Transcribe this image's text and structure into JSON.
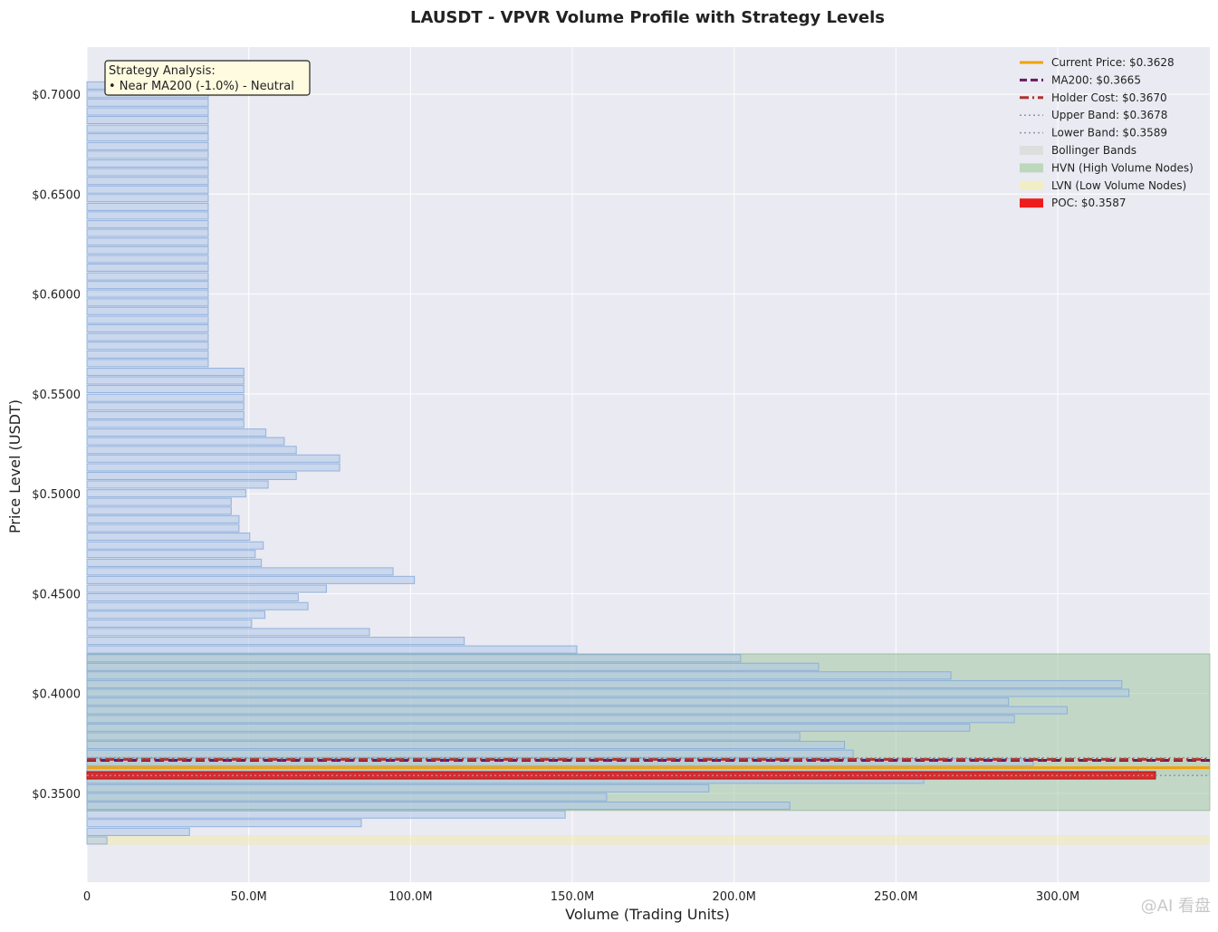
{
  "chart_data": {
    "type": "bar",
    "orientation": "horizontal",
    "title": "LAUSDT - VPVR Volume Profile with Strategy Levels",
    "xlabel": "Volume (Trading Units)",
    "ylabel": "Price Level (USDT)",
    "xlim": [
      0,
      347
    ],
    "ylim": [
      0.3055,
      0.7236
    ],
    "x_unit": "M",
    "grid": true,
    "legend_position": "top-right",
    "x_ticks": [
      {
        "value": 0,
        "label": "0"
      },
      {
        "value": 50,
        "label": "50.0M"
      },
      {
        "value": 100,
        "label": "100.0M"
      },
      {
        "value": 150,
        "label": "150.0M"
      },
      {
        "value": 200,
        "label": "200.0M"
      },
      {
        "value": 250,
        "label": "250.0M"
      },
      {
        "value": 300,
        "label": "300.0M"
      }
    ],
    "y_ticks": [
      {
        "value": 0.7,
        "label": "$0.7000"
      },
      {
        "value": 0.65,
        "label": "$0.6500"
      },
      {
        "value": 0.6,
        "label": "$0.6000"
      },
      {
        "value": 0.55,
        "label": "$0.5500"
      },
      {
        "value": 0.5,
        "label": "$0.5000"
      },
      {
        "value": 0.45,
        "label": "$0.4500"
      },
      {
        "value": 0.4,
        "label": "$0.4000"
      },
      {
        "value": 0.35,
        "label": "$0.3500"
      }
    ],
    "bin_height": 0.0042,
    "series": [
      {
        "name": "Volume",
        "color": "#aec7e8",
        "bins": [
          {
            "price": 0.7044,
            "volume": 37.5
          },
          {
            "price": 0.7001,
            "volume": 37.5
          },
          {
            "price": 0.6958,
            "volume": 37.5
          },
          {
            "price": 0.6914,
            "volume": 37.5
          },
          {
            "price": 0.6871,
            "volume": 37.5
          },
          {
            "price": 0.6827,
            "volume": 37.5
          },
          {
            "price": 0.6784,
            "volume": 37.5
          },
          {
            "price": 0.674,
            "volume": 37.5
          },
          {
            "price": 0.6697,
            "volume": 37.5
          },
          {
            "price": 0.6653,
            "volume": 37.5
          },
          {
            "price": 0.661,
            "volume": 37.5
          },
          {
            "price": 0.6566,
            "volume": 37.5
          },
          {
            "price": 0.6523,
            "volume": 37.5
          },
          {
            "price": 0.648,
            "volume": 37.5
          },
          {
            "price": 0.6436,
            "volume": 37.5
          },
          {
            "price": 0.6393,
            "volume": 37.5
          },
          {
            "price": 0.6349,
            "volume": 37.5
          },
          {
            "price": 0.6306,
            "volume": 37.5
          },
          {
            "price": 0.6262,
            "volume": 37.5
          },
          {
            "price": 0.6219,
            "volume": 37.5
          },
          {
            "price": 0.6175,
            "volume": 37.5
          },
          {
            "price": 0.6132,
            "volume": 37.5
          },
          {
            "price": 0.6088,
            "volume": 37.5
          },
          {
            "price": 0.6045,
            "volume": 37.5
          },
          {
            "price": 0.6002,
            "volume": 37.5
          },
          {
            "price": 0.5958,
            "volume": 37.5
          },
          {
            "price": 0.5915,
            "volume": 37.5
          },
          {
            "price": 0.5871,
            "volume": 37.5
          },
          {
            "price": 0.5828,
            "volume": 37.5
          },
          {
            "price": 0.5784,
            "volume": 37.5
          },
          {
            "price": 0.5741,
            "volume": 37.5
          },
          {
            "price": 0.5697,
            "volume": 37.5
          },
          {
            "price": 0.5654,
            "volume": 37.5
          },
          {
            "price": 0.561,
            "volume": 48.5
          },
          {
            "price": 0.5567,
            "volume": 48.5
          },
          {
            "price": 0.5524,
            "volume": 48.5
          },
          {
            "price": 0.548,
            "volume": 48.5
          },
          {
            "price": 0.5437,
            "volume": 48.5
          },
          {
            "price": 0.5393,
            "volume": 48.5
          },
          {
            "price": 0.535,
            "volume": 48.5
          },
          {
            "price": 0.5306,
            "volume": 55.3
          },
          {
            "price": 0.5263,
            "volume": 61.0
          },
          {
            "price": 0.5219,
            "volume": 64.7
          },
          {
            "price": 0.5176,
            "volume": 78.1
          },
          {
            "price": 0.5132,
            "volume": 78.1
          },
          {
            "price": 0.5089,
            "volume": 64.7
          },
          {
            "price": 0.5046,
            "volume": 56.0
          },
          {
            "price": 0.5002,
            "volume": 49.1
          },
          {
            "price": 0.4959,
            "volume": 44.6
          },
          {
            "price": 0.4915,
            "volume": 44.6
          },
          {
            "price": 0.4872,
            "volume": 47.0
          },
          {
            "price": 0.4828,
            "volume": 47.0
          },
          {
            "price": 0.4785,
            "volume": 50.3
          },
          {
            "price": 0.4741,
            "volume": 54.5
          },
          {
            "price": 0.4698,
            "volume": 52.0
          },
          {
            "price": 0.4654,
            "volume": 53.9
          },
          {
            "price": 0.4611,
            "volume": 94.6
          },
          {
            "price": 0.4568,
            "volume": 101.2
          },
          {
            "price": 0.4524,
            "volume": 74.0
          },
          {
            "price": 0.4481,
            "volume": 65.3
          },
          {
            "price": 0.4437,
            "volume": 68.3
          },
          {
            "price": 0.4394,
            "volume": 55.0
          },
          {
            "price": 0.435,
            "volume": 50.9
          },
          {
            "price": 0.4307,
            "volume": 87.3
          },
          {
            "price": 0.4263,
            "volume": 116.6
          },
          {
            "price": 0.422,
            "volume": 151.4
          },
          {
            "price": 0.4176,
            "volume": 202.0
          },
          {
            "price": 0.4133,
            "volume": 226.1
          },
          {
            "price": 0.409,
            "volume": 267.0
          },
          {
            "price": 0.4046,
            "volume": 319.8
          },
          {
            "price": 0.4003,
            "volume": 322.0
          },
          {
            "price": 0.3959,
            "volume": 284.8
          },
          {
            "price": 0.3916,
            "volume": 302.9
          },
          {
            "price": 0.3872,
            "volume": 286.6
          },
          {
            "price": 0.3829,
            "volume": 272.8
          },
          {
            "price": 0.3785,
            "volume": 220.3
          },
          {
            "price": 0.3742,
            "volume": 234.1
          },
          {
            "price": 0.3698,
            "volume": 236.8
          },
          {
            "price": 0.3655,
            "volume": 292.4
          },
          {
            "price": 0.3612,
            "volume": 324.8
          },
          {
            "price": 0.3568,
            "volume": 258.6
          },
          {
            "price": 0.3525,
            "volume": 192.2
          },
          {
            "price": 0.3481,
            "volume": 160.6
          },
          {
            "price": 0.3438,
            "volume": 217.2
          },
          {
            "price": 0.3394,
            "volume": 147.8
          },
          {
            "price": 0.3351,
            "volume": 84.8
          },
          {
            "price": 0.3307,
            "volume": 31.7
          },
          {
            "price": 0.3264,
            "volume": 6.2
          }
        ]
      },
      {
        "name": "POC: $0.3587",
        "color": "#dd1c1c",
        "bins": [
          {
            "price": 0.359,
            "volume": 330.2
          }
        ]
      }
    ],
    "levels": [
      {
        "name": "Current Price: $0.3628",
        "price": 0.3628,
        "color": "#f0a30a",
        "style": "solid"
      },
      {
        "name": "MA200: $0.3665",
        "price": 0.3665,
        "color": "#6d1863",
        "style": "dashed"
      },
      {
        "name": "Holder Cost: $0.3670",
        "price": 0.367,
        "color": "#b0322c",
        "style": "dashdot"
      },
      {
        "name": "Upper Band: $0.3678",
        "price": 0.3678,
        "color": "#8a9aa8",
        "style": "dotted"
      },
      {
        "name": "Lower Band: $0.3589",
        "price": 0.3589,
        "color": "#8a9aa8",
        "style": "dotted"
      }
    ],
    "zones": [
      {
        "name": "Bollinger Bands",
        "from": 0.3589,
        "to": 0.3678,
        "color": "#d9d9d9"
      },
      {
        "name": "HVN (High Volume Nodes)",
        "from": 0.3414,
        "to": 0.4198,
        "color": "#9bc49b"
      },
      {
        "name": "LVN (Low Volume Nodes)",
        "from": 0.3242,
        "to": 0.3291,
        "color": "#f2e9a9"
      }
    ],
    "legend": [
      {
        "label": "Current Price: $0.3628",
        "kind": "line",
        "color": "#f0a30a",
        "style": "solid"
      },
      {
        "label": "MA200: $0.3665",
        "kind": "line",
        "color": "#6d1863",
        "style": "dashed"
      },
      {
        "label": "Holder Cost: $0.3670",
        "kind": "line",
        "color": "#b0322c",
        "style": "dashdot"
      },
      {
        "label": "Upper Band: $0.3678",
        "kind": "line",
        "color": "#8a9aa8",
        "style": "dotted"
      },
      {
        "label": "Lower Band: $0.3589",
        "kind": "line",
        "color": "#8a9aa8",
        "style": "dotted"
      },
      {
        "label": "Bollinger Bands",
        "kind": "patch",
        "color": "#dedede"
      },
      {
        "label": "HVN (High Volume Nodes)",
        "kind": "patch",
        "color": "#bcd8bc"
      },
      {
        "label": "LVN (Low Volume Nodes)",
        "kind": "patch",
        "color": "#f2eec4"
      },
      {
        "label": "POC: $0.3587",
        "kind": "patch",
        "color": "#ee1c1c"
      }
    ],
    "annotation": {
      "lines": [
        "Strategy Analysis:",
        "• Near MA200 (-1.0%) - Neutral"
      ]
    }
  },
  "watermark": {
    "text": "@AI 看盘"
  }
}
